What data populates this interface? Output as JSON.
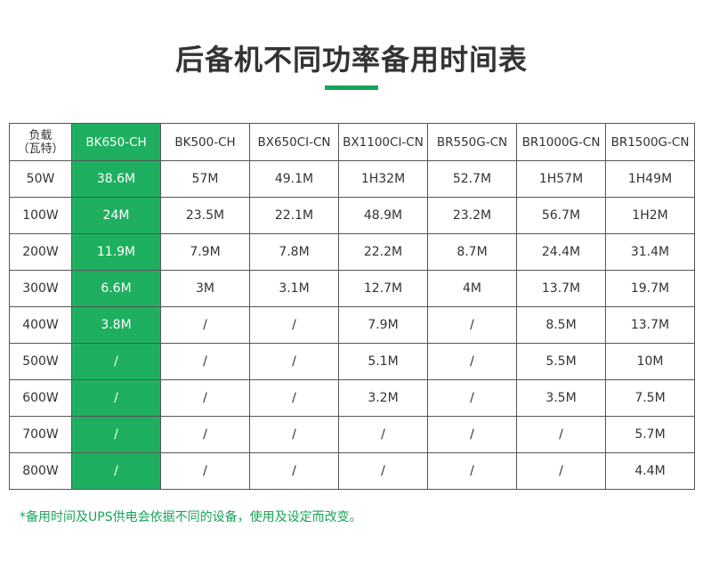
{
  "title": "后备机不同功率备用时间表",
  "accent_color": "#1aa35a",
  "highlight_color": "#1eb060",
  "table": {
    "load_header_line1": "负载",
    "load_header_line2": "（瓦特）",
    "models": [
      "BK650-CH",
      "BK500-CH",
      "BX650CI-CN",
      "BX1100CI-CN",
      "BR550G-CN",
      "BR1000G-CN",
      "BR1500G-CN"
    ],
    "rows": [
      {
        "load": "50W",
        "values": [
          "38.6M",
          "57M",
          "49.1M",
          "1H32M",
          "52.7M",
          "1H57M",
          "1H49M"
        ]
      },
      {
        "load": "100W",
        "values": [
          "24M",
          "23.5M",
          "22.1M",
          "48.9M",
          "23.2M",
          "56.7M",
          "1H2M"
        ]
      },
      {
        "load": "200W",
        "values": [
          "11.9M",
          "7.9M",
          "7.8M",
          "22.2M",
          "8.7M",
          "24.4M",
          "31.4M"
        ]
      },
      {
        "load": "300W",
        "values": [
          "6.6M",
          "3M",
          "3.1M",
          "12.7M",
          "4M",
          "13.7M",
          "19.7M"
        ]
      },
      {
        "load": "400W",
        "values": [
          "3.8M",
          "/",
          "/",
          "7.9M",
          "/",
          "8.5M",
          "13.7M"
        ]
      },
      {
        "load": "500W",
        "values": [
          "/",
          "/",
          "/",
          "5.1M",
          "/",
          "5.5M",
          "10M"
        ]
      },
      {
        "load": "600W",
        "values": [
          "/",
          "/",
          "/",
          "3.2M",
          "/",
          "3.5M",
          "7.5M"
        ]
      },
      {
        "load": "700W",
        "values": [
          "/",
          "/",
          "/",
          "/",
          "/",
          "/",
          "5.7M"
        ]
      },
      {
        "load": "800W",
        "values": [
          "/",
          "/",
          "/",
          "/",
          "/",
          "/",
          "4.4M"
        ]
      }
    ]
  },
  "footnote": "*备用时间及UPS供电会依据不同的设备，使用及设定而改变。"
}
